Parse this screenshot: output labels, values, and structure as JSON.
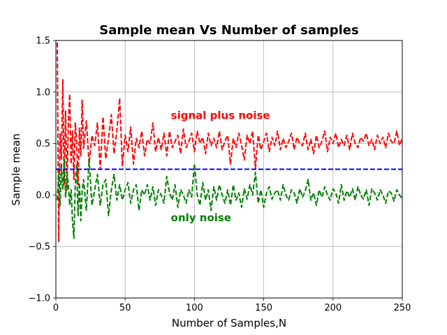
{
  "chart_data": {
    "type": "line",
    "title": "Sample mean Vs Number of samples",
    "xlabel": "Number of Samples,N",
    "ylabel": "Sample mean",
    "xlim": [
      0,
      250
    ],
    "ylim": [
      -1.0,
      1.5
    ],
    "xticks": [
      0,
      50,
      100,
      150,
      200,
      250
    ],
    "yticks": [
      -1.0,
      -0.5,
      0.0,
      0.5,
      1.0,
      1.5
    ],
    "xtick_labels": [
      "0",
      "50",
      "100",
      "150",
      "200",
      "250"
    ],
    "ytick_labels": [
      "−1.0",
      "−0.5",
      "0.0",
      "0.5",
      "1.0",
      "1.5"
    ],
    "grid": true,
    "annotations": [
      {
        "text": "signal plus noise",
        "x": 83,
        "y": 0.77,
        "color": "#ff0000"
      },
      {
        "text": "only noise",
        "x": 83,
        "y": -0.22,
        "color": "#008000"
      }
    ],
    "series": [
      {
        "color": "#ff0000",
        "style": "dashed",
        "x": [
          1,
          2,
          3,
          4,
          5,
          6,
          7,
          8,
          9,
          10,
          11,
          12,
          13,
          14,
          15,
          16,
          17,
          18,
          19,
          20,
          22,
          24,
          26,
          28,
          30,
          32,
          34,
          36,
          38,
          40,
          42,
          44,
          46,
          48,
          50,
          52,
          54,
          56,
          58,
          60,
          62,
          64,
          66,
          68,
          70,
          72,
          74,
          76,
          78,
          80,
          82,
          84,
          86,
          88,
          90,
          92,
          94,
          96,
          98,
          100,
          102,
          104,
          106,
          108,
          110,
          112,
          114,
          116,
          118,
          120,
          122,
          124,
          126,
          128,
          130,
          132,
          134,
          136,
          138,
          140,
          142,
          144,
          146,
          148,
          150,
          152,
          154,
          156,
          158,
          160,
          162,
          164,
          166,
          168,
          170,
          172,
          174,
          176,
          178,
          180,
          182,
          184,
          186,
          188,
          190,
          192,
          194,
          196,
          198,
          200,
          202,
          204,
          206,
          208,
          210,
          212,
          214,
          216,
          218,
          220,
          222,
          224,
          226,
          228,
          230,
          232,
          234,
          236,
          238,
          240,
          242,
          244,
          246,
          248,
          250
        ],
        "y": [
          1.48,
          -0.45,
          0.6,
          0.35,
          1.12,
          0.1,
          0.82,
          0.05,
          0.7,
          0.98,
          0.3,
          0.62,
          0.15,
          0.7,
          0.5,
          0.1,
          0.65,
          0.38,
          0.92,
          0.45,
          0.72,
          0.3,
          0.58,
          0.48,
          0.7,
          0.25,
          0.76,
          0.35,
          0.55,
          0.78,
          0.4,
          0.62,
          0.94,
          0.28,
          0.58,
          0.42,
          0.66,
          0.3,
          0.55,
          0.46,
          0.62,
          0.38,
          0.54,
          0.5,
          0.7,
          0.42,
          0.56,
          0.44,
          0.6,
          0.38,
          0.62,
          0.46,
          0.52,
          0.58,
          0.4,
          0.64,
          0.46,
          0.52,
          0.6,
          0.42,
          0.62,
          0.5,
          0.56,
          0.4,
          0.6,
          0.48,
          0.55,
          0.46,
          0.62,
          0.44,
          0.52,
          0.58,
          0.3,
          0.55,
          0.46,
          0.6,
          0.48,
          0.34,
          0.58,
          0.5,
          0.62,
          0.26,
          0.58,
          0.44,
          0.52,
          0.6,
          0.42,
          0.56,
          0.48,
          0.62,
          0.44,
          0.55,
          0.46,
          0.52,
          0.6,
          0.44,
          0.56,
          0.5,
          0.48,
          0.6,
          0.44,
          0.54,
          0.4,
          0.58,
          0.46,
          0.52,
          0.62,
          0.42,
          0.56,
          0.5,
          0.6,
          0.46,
          0.54,
          0.48,
          0.58,
          0.44,
          0.6,
          0.5,
          0.46,
          0.56,
          0.52,
          0.6,
          0.48,
          0.54,
          0.44,
          0.58,
          0.5,
          0.56,
          0.46,
          0.6,
          0.52,
          0.5,
          0.62,
          0.48,
          0.55
        ]
      },
      {
        "color": "#008000",
        "style": "dashed",
        "x": [
          1,
          2,
          3,
          4,
          5,
          6,
          7,
          8,
          9,
          10,
          11,
          12,
          13,
          14,
          15,
          16,
          17,
          18,
          19,
          20,
          22,
          24,
          26,
          28,
          30,
          32,
          34,
          36,
          38,
          40,
          42,
          44,
          46,
          48,
          50,
          52,
          54,
          56,
          58,
          60,
          62,
          64,
          66,
          68,
          70,
          72,
          74,
          76,
          78,
          80,
          82,
          84,
          86,
          88,
          90,
          92,
          94,
          96,
          98,
          100,
          102,
          104,
          106,
          108,
          110,
          112,
          114,
          116,
          118,
          120,
          122,
          124,
          126,
          128,
          130,
          132,
          134,
          136,
          138,
          140,
          142,
          144,
          146,
          148,
          150,
          152,
          154,
          156,
          158,
          160,
          162,
          164,
          166,
          168,
          170,
          172,
          174,
          176,
          178,
          180,
          182,
          184,
          186,
          188,
          190,
          192,
          194,
          196,
          198,
          200,
          202,
          204,
          206,
          208,
          210,
          212,
          214,
          216,
          218,
          220,
          222,
          224,
          226,
          228,
          230,
          232,
          234,
          236,
          238,
          240,
          242,
          244,
          246,
          248,
          250
        ],
        "y": [
          -0.05,
          0.2,
          -0.1,
          0.3,
          0.05,
          0.35,
          -0.02,
          0.22,
          0.1,
          -0.1,
          0.05,
          -0.25,
          -0.42,
          0.1,
          0.3,
          -0.2,
          0.12,
          -0.25,
          0.05,
          0.15,
          -0.15,
          0.35,
          -0.1,
          0.05,
          0.2,
          -0.1,
          0.1,
          0.15,
          -0.2,
          0.05,
          0.2,
          -0.05,
          0.1,
          -0.05,
          0.05,
          0.12,
          -0.08,
          0.05,
          0.1,
          -0.15,
          0.05,
          0.0,
          0.1,
          -0.05,
          0.08,
          -0.1,
          0.05,
          0.0,
          -0.08,
          0.18,
          0.02,
          -0.05,
          0.1,
          -0.12,
          0.05,
          0.0,
          -0.08,
          0.05,
          -0.02,
          0.3,
          0.0,
          -0.1,
          0.12,
          -0.05,
          0.05,
          -0.15,
          0.08,
          -0.05,
          0.1,
          0.0,
          -0.08,
          0.05,
          -0.1,
          0.1,
          -0.05,
          0.02,
          -0.12,
          0.06,
          -0.04,
          0.1,
          0.0,
          0.22,
          -0.08,
          0.05,
          -0.12,
          0.02,
          0.08,
          -0.04,
          0.02,
          0.05,
          -0.05,
          0.1,
          0.0,
          -0.05,
          0.05,
          0.02,
          -0.08,
          0.06,
          -0.02,
          0.04,
          0.15,
          -0.05,
          0.02,
          -0.1,
          0.05,
          -0.02,
          0.08,
          0.0,
          -0.05,
          0.06,
          0.02,
          -0.08,
          0.1,
          -0.05,
          0.04,
          -0.02,
          0.06,
          -0.05,
          0.08,
          0.0,
          -0.04,
          0.05,
          -0.1,
          0.06,
          0.02,
          -0.05,
          0.05,
          0.0,
          -0.08,
          0.04,
          0.02,
          -0.06,
          0.05,
          0.0,
          -0.04
        ]
      },
      {
        "color": "#0000ff",
        "style": "dashed",
        "x": [
          0,
          250
        ],
        "y": [
          0.25,
          0.25
        ]
      }
    ]
  }
}
